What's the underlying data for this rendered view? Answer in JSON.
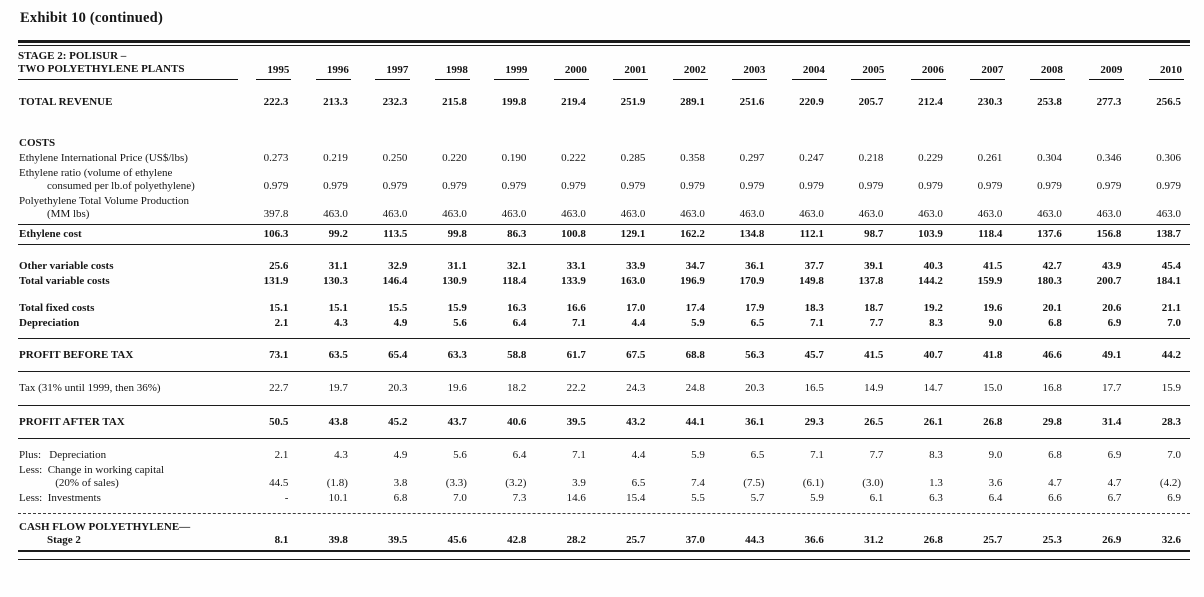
{
  "page_title": "Exhibit 10 (continued)",
  "table": {
    "stub_line1": "STAGE 2:  POLISUR –",
    "stub_line2": "TWO POLYETHYLENE PLANTS",
    "years": [
      "1995",
      "1996",
      "1997",
      "1998",
      "1999",
      "2000",
      "2001",
      "2002",
      "2003",
      "2004",
      "2005",
      "2006",
      "2007",
      "2008",
      "2009",
      "2010"
    ],
    "rows": [
      {
        "t": "space",
        "h": 15
      },
      {
        "t": "row",
        "bold": true,
        "label": "TOTAL REVENUE",
        "values": [
          "222.3",
          "213.3",
          "232.3",
          "215.8",
          "199.8",
          "219.4",
          "251.9",
          "289.1",
          "251.6",
          "220.9",
          "205.7",
          "212.4",
          "230.3",
          "253.8",
          "277.3",
          "256.5"
        ]
      },
      {
        "t": "space",
        "h": 26
      },
      {
        "t": "row",
        "bold": true,
        "label": "COSTS",
        "values": []
      },
      {
        "t": "row",
        "label": "Ethylene International Price (US$/lbs)",
        "values": [
          "0.273",
          "0.219",
          "0.250",
          "0.220",
          "0.190",
          "0.222",
          "0.285",
          "0.358",
          "0.297",
          "0.247",
          "0.218",
          "0.229",
          "0.261",
          "0.304",
          "0.346",
          "0.306"
        ]
      },
      {
        "t": "row",
        "label": "Ethylene ratio (volume of ethylene",
        "label2": "consumed per lb.of polyethylene)",
        "values": [
          "0.979",
          "0.979",
          "0.979",
          "0.979",
          "0.979",
          "0.979",
          "0.979",
          "0.979",
          "0.979",
          "0.979",
          "0.979",
          "0.979",
          "0.979",
          "0.979",
          "0.979",
          "0.979"
        ]
      },
      {
        "t": "row",
        "label": "Polyethylene Total Volume Production",
        "label2": "(MM lbs)",
        "values": [
          "397.8",
          "463.0",
          "463.0",
          "463.0",
          "463.0",
          "463.0",
          "463.0",
          "463.0",
          "463.0",
          "463.0",
          "463.0",
          "463.0",
          "463.0",
          "463.0",
          "463.0",
          "463.0"
        ]
      },
      {
        "t": "rule",
        "v": "solid"
      },
      {
        "t": "row",
        "bold": true,
        "label": "Ethylene cost",
        "values": [
          "106.3",
          "99.2",
          "113.5",
          "99.8",
          "86.3",
          "100.8",
          "129.1",
          "162.2",
          "134.8",
          "112.1",
          "98.7",
          "103.9",
          "118.4",
          "137.6",
          "156.8",
          "138.7"
        ]
      },
      {
        "t": "rule",
        "v": "solid"
      },
      {
        "t": "space",
        "h": 12
      },
      {
        "t": "row",
        "bold": true,
        "label": "Other variable costs",
        "values": [
          "25.6",
          "31.1",
          "32.9",
          "31.1",
          "32.1",
          "33.1",
          "33.9",
          "34.7",
          "36.1",
          "37.7",
          "39.1",
          "40.3",
          "41.5",
          "42.7",
          "43.9",
          "45.4"
        ]
      },
      {
        "t": "row",
        "bold": true,
        "label": "Total variable costs",
        "values": [
          "131.9",
          "130.3",
          "146.4",
          "130.9",
          "118.4",
          "133.9",
          "163.0",
          "196.9",
          "170.9",
          "149.8",
          "137.8",
          "144.2",
          "159.9",
          "180.3",
          "200.7",
          "184.1"
        ]
      },
      {
        "t": "space",
        "h": 12
      },
      {
        "t": "row",
        "bold": true,
        "label": "Total fixed costs",
        "values": [
          "15.1",
          "15.1",
          "15.5",
          "15.9",
          "16.3",
          "16.6",
          "17.0",
          "17.4",
          "17.9",
          "18.3",
          "18.7",
          "19.2",
          "19.6",
          "20.1",
          "20.6",
          "21.1"
        ]
      },
      {
        "t": "row",
        "bold": true,
        "label": "Depreciation",
        "values": [
          "2.1",
          "4.3",
          "4.9",
          "5.6",
          "6.4",
          "7.1",
          "4.4",
          "5.9",
          "6.5",
          "7.1",
          "7.7",
          "8.3",
          "9.0",
          "6.8",
          "6.9",
          "7.0"
        ]
      },
      {
        "t": "space",
        "h": 5
      },
      {
        "t": "rule",
        "v": "solid"
      },
      {
        "t": "space",
        "h": 7
      },
      {
        "t": "row",
        "bold": true,
        "label": "PROFIT BEFORE TAX",
        "values": [
          "73.1",
          "63.5",
          "65.4",
          "63.3",
          "58.8",
          "61.7",
          "67.5",
          "68.8",
          "56.3",
          "45.7",
          "41.5",
          "40.7",
          "41.8",
          "46.6",
          "49.1",
          "44.2"
        ]
      },
      {
        "t": "space",
        "h": 6
      },
      {
        "t": "rule",
        "v": "solid"
      },
      {
        "t": "space",
        "h": 7
      },
      {
        "t": "row",
        "label": "Tax (31% until 1999, then 36%)",
        "values": [
          "22.7",
          "19.7",
          "20.3",
          "19.6",
          "18.2",
          "22.2",
          "24.3",
          "24.8",
          "20.3",
          "16.5",
          "14.9",
          "14.7",
          "15.0",
          "16.8",
          "17.7",
          "15.9"
        ]
      },
      {
        "t": "space",
        "h": 7
      },
      {
        "t": "rule",
        "v": "solid"
      },
      {
        "t": "space",
        "h": 7
      },
      {
        "t": "row",
        "bold": true,
        "label": "PROFIT AFTER TAX",
        "values": [
          "50.5",
          "43.8",
          "45.2",
          "43.7",
          "40.6",
          "39.5",
          "43.2",
          "44.1",
          "36.1",
          "29.3",
          "26.5",
          "26.1",
          "26.8",
          "29.8",
          "31.4",
          "28.3"
        ]
      },
      {
        "t": "space",
        "h": 6
      },
      {
        "t": "rule",
        "v": "solid"
      },
      {
        "t": "space",
        "h": 7
      },
      {
        "t": "row",
        "label": "Plus:   Depreciation",
        "values": [
          "2.1",
          "4.3",
          "4.9",
          "5.6",
          "6.4",
          "7.1",
          "4.4",
          "5.9",
          "6.5",
          "7.1",
          "7.7",
          "8.3",
          "9.0",
          "6.8",
          "6.9",
          "7.0"
        ]
      },
      {
        "t": "row",
        "label": "Less:  Change in working capital",
        "label2": "   (20% of sales)",
        "values": [
          "44.5",
          "(1.8)",
          "3.8",
          "(3.3)",
          "(3.2)",
          "3.9",
          "6.5",
          "7.4",
          "(7.5)",
          "(6.1)",
          "(3.0)",
          "1.3",
          "3.6",
          "4.7",
          "4.7",
          "(4.2)"
        ]
      },
      {
        "t": "row",
        "label": "Less:  Investments",
        "values": [
          "-",
          "10.1",
          "6.8",
          "7.0",
          "7.3",
          "14.6",
          "15.4",
          "5.5",
          "5.7",
          "5.9",
          "6.1",
          "6.3",
          "6.4",
          "6.6",
          "6.7",
          "6.9"
        ]
      },
      {
        "t": "space",
        "h": 5
      },
      {
        "t": "rule",
        "v": "dashed"
      },
      {
        "t": "space",
        "h": 4
      },
      {
        "t": "row",
        "bold": true,
        "label": "CASH FLOW POLYETHYLENE—",
        "label2": "Stage 2",
        "values": [
          "8.1",
          "39.8",
          "39.5",
          "45.6",
          "42.8",
          "28.2",
          "25.7",
          "37.0",
          "44.3",
          "36.6",
          "31.2",
          "26.8",
          "25.7",
          "25.3",
          "26.9",
          "32.6"
        ]
      },
      {
        "t": "rule",
        "v": "thick"
      },
      {
        "t": "space",
        "h": 3
      },
      {
        "t": "rule",
        "v": "solid"
      }
    ]
  }
}
